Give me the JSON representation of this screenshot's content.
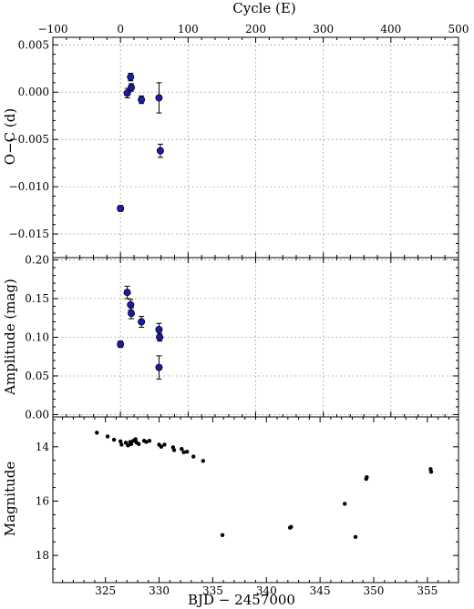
{
  "chart_data": [
    {
      "id": "oc",
      "type": "scatter",
      "x_label_top": "Cycle (E)",
      "x_ticks_top": [
        -100,
        0,
        100,
        200,
        300,
        400,
        500
      ],
      "ylabel": "O−C (d)",
      "ylim": [
        -0.0175,
        0.0058
      ],
      "y_ticks": [
        0.005,
        0.0,
        -0.005,
        -0.01,
        -0.015
      ],
      "y_tick_labels": [
        "0.005",
        "0.000",
        "−0.005",
        "−0.010",
        "−0.015"
      ],
      "grid": true,
      "marker_color": "#1a1ab4",
      "points": [
        {
          "E": 0,
          "oc": -0.0123,
          "err": 0.0003
        },
        {
          "E": 10,
          "oc": -0.0001,
          "err": 0.0005
        },
        {
          "E": 15,
          "oc": 0.0016,
          "err": 0.0004
        },
        {
          "E": 16,
          "oc": 0.0005,
          "err": 0.0004
        },
        {
          "E": 31,
          "oc": -0.0008,
          "err": 0.0004
        },
        {
          "E": 57,
          "oc": -0.0006,
          "err": 0.0016
        },
        {
          "E": 59,
          "oc": -0.0062,
          "err": 0.0007
        }
      ]
    },
    {
      "id": "amp",
      "type": "scatter",
      "ylabel": "Amplitude (mag)",
      "ylim": [
        -0.003,
        0.203
      ],
      "y_ticks": [
        0.0,
        0.05,
        0.1,
        0.15,
        0.2
      ],
      "y_tick_labels": [
        "0.00",
        "0.05",
        "0.10",
        "0.15",
        "0.20"
      ],
      "grid": true,
      "marker_color": "#1a1ab4",
      "points": [
        {
          "E": 0,
          "amp": 0.091,
          "err": 0.004
        },
        {
          "E": 10,
          "amp": 0.158,
          "err": 0.008
        },
        {
          "E": 15,
          "amp": 0.142,
          "err": 0.007
        },
        {
          "E": 16,
          "amp": 0.131,
          "err": 0.007
        },
        {
          "E": 31,
          "amp": 0.12,
          "err": 0.007
        },
        {
          "E": 57,
          "amp": 0.11,
          "err": 0.008
        },
        {
          "E": 58,
          "amp": 0.1,
          "err": 0.005
        },
        {
          "E": 57,
          "amp": 0.061,
          "err": 0.015
        }
      ]
    },
    {
      "id": "mag",
      "type": "scatter",
      "xlabel": "BJD − 2457000",
      "x_ticks": [
        325,
        330,
        335,
        340,
        345,
        350,
        355
      ],
      "xlim": [
        320.1,
        357.9
      ],
      "ylabel": "Magnitude",
      "ylim": [
        19.0,
        12.9
      ],
      "y_ticks": [
        14,
        16,
        18
      ],
      "inverted_y": true,
      "grid": false,
      "marker_color": "#000000",
      "points": [
        {
          "bjd": 324.2,
          "mag": 13.48
        },
        {
          "bjd": 325.2,
          "mag": 13.62
        },
        {
          "bjd": 325.8,
          "mag": 13.74
        },
        {
          "bjd": 326.4,
          "mag": 13.8
        },
        {
          "bjd": 326.5,
          "mag": 13.92
        },
        {
          "bjd": 326.9,
          "mag": 13.85
        },
        {
          "bjd": 327.1,
          "mag": 13.95
        },
        {
          "bjd": 327.3,
          "mag": 13.82
        },
        {
          "bjd": 327.4,
          "mag": 13.9
        },
        {
          "bjd": 327.6,
          "mag": 13.78
        },
        {
          "bjd": 327.8,
          "mag": 13.72
        },
        {
          "bjd": 327.9,
          "mag": 13.84
        },
        {
          "bjd": 328.1,
          "mag": 13.9
        },
        {
          "bjd": 328.6,
          "mag": 13.78
        },
        {
          "bjd": 328.8,
          "mag": 13.82
        },
        {
          "bjd": 329.1,
          "mag": 13.78
        },
        {
          "bjd": 330.0,
          "mag": 13.92
        },
        {
          "bjd": 330.2,
          "mag": 14.0
        },
        {
          "bjd": 330.5,
          "mag": 13.92
        },
        {
          "bjd": 331.3,
          "mag": 14.02
        },
        {
          "bjd": 331.4,
          "mag": 14.12
        },
        {
          "bjd": 332.1,
          "mag": 14.08
        },
        {
          "bjd": 332.3,
          "mag": 14.2
        },
        {
          "bjd": 332.6,
          "mag": 14.18
        },
        {
          "bjd": 333.2,
          "mag": 14.36
        },
        {
          "bjd": 334.1,
          "mag": 14.52
        },
        {
          "bjd": 335.9,
          "mag": 17.25
        },
        {
          "bjd": 342.2,
          "mag": 16.98
        },
        {
          "bjd": 342.3,
          "mag": 16.95
        },
        {
          "bjd": 347.3,
          "mag": 16.1
        },
        {
          "bjd": 348.3,
          "mag": 17.32
        },
        {
          "bjd": 349.3,
          "mag": 15.18
        },
        {
          "bjd": 349.35,
          "mag": 15.12
        },
        {
          "bjd": 355.3,
          "mag": 14.82
        },
        {
          "bjd": 355.35,
          "mag": 14.92
        }
      ]
    }
  ]
}
